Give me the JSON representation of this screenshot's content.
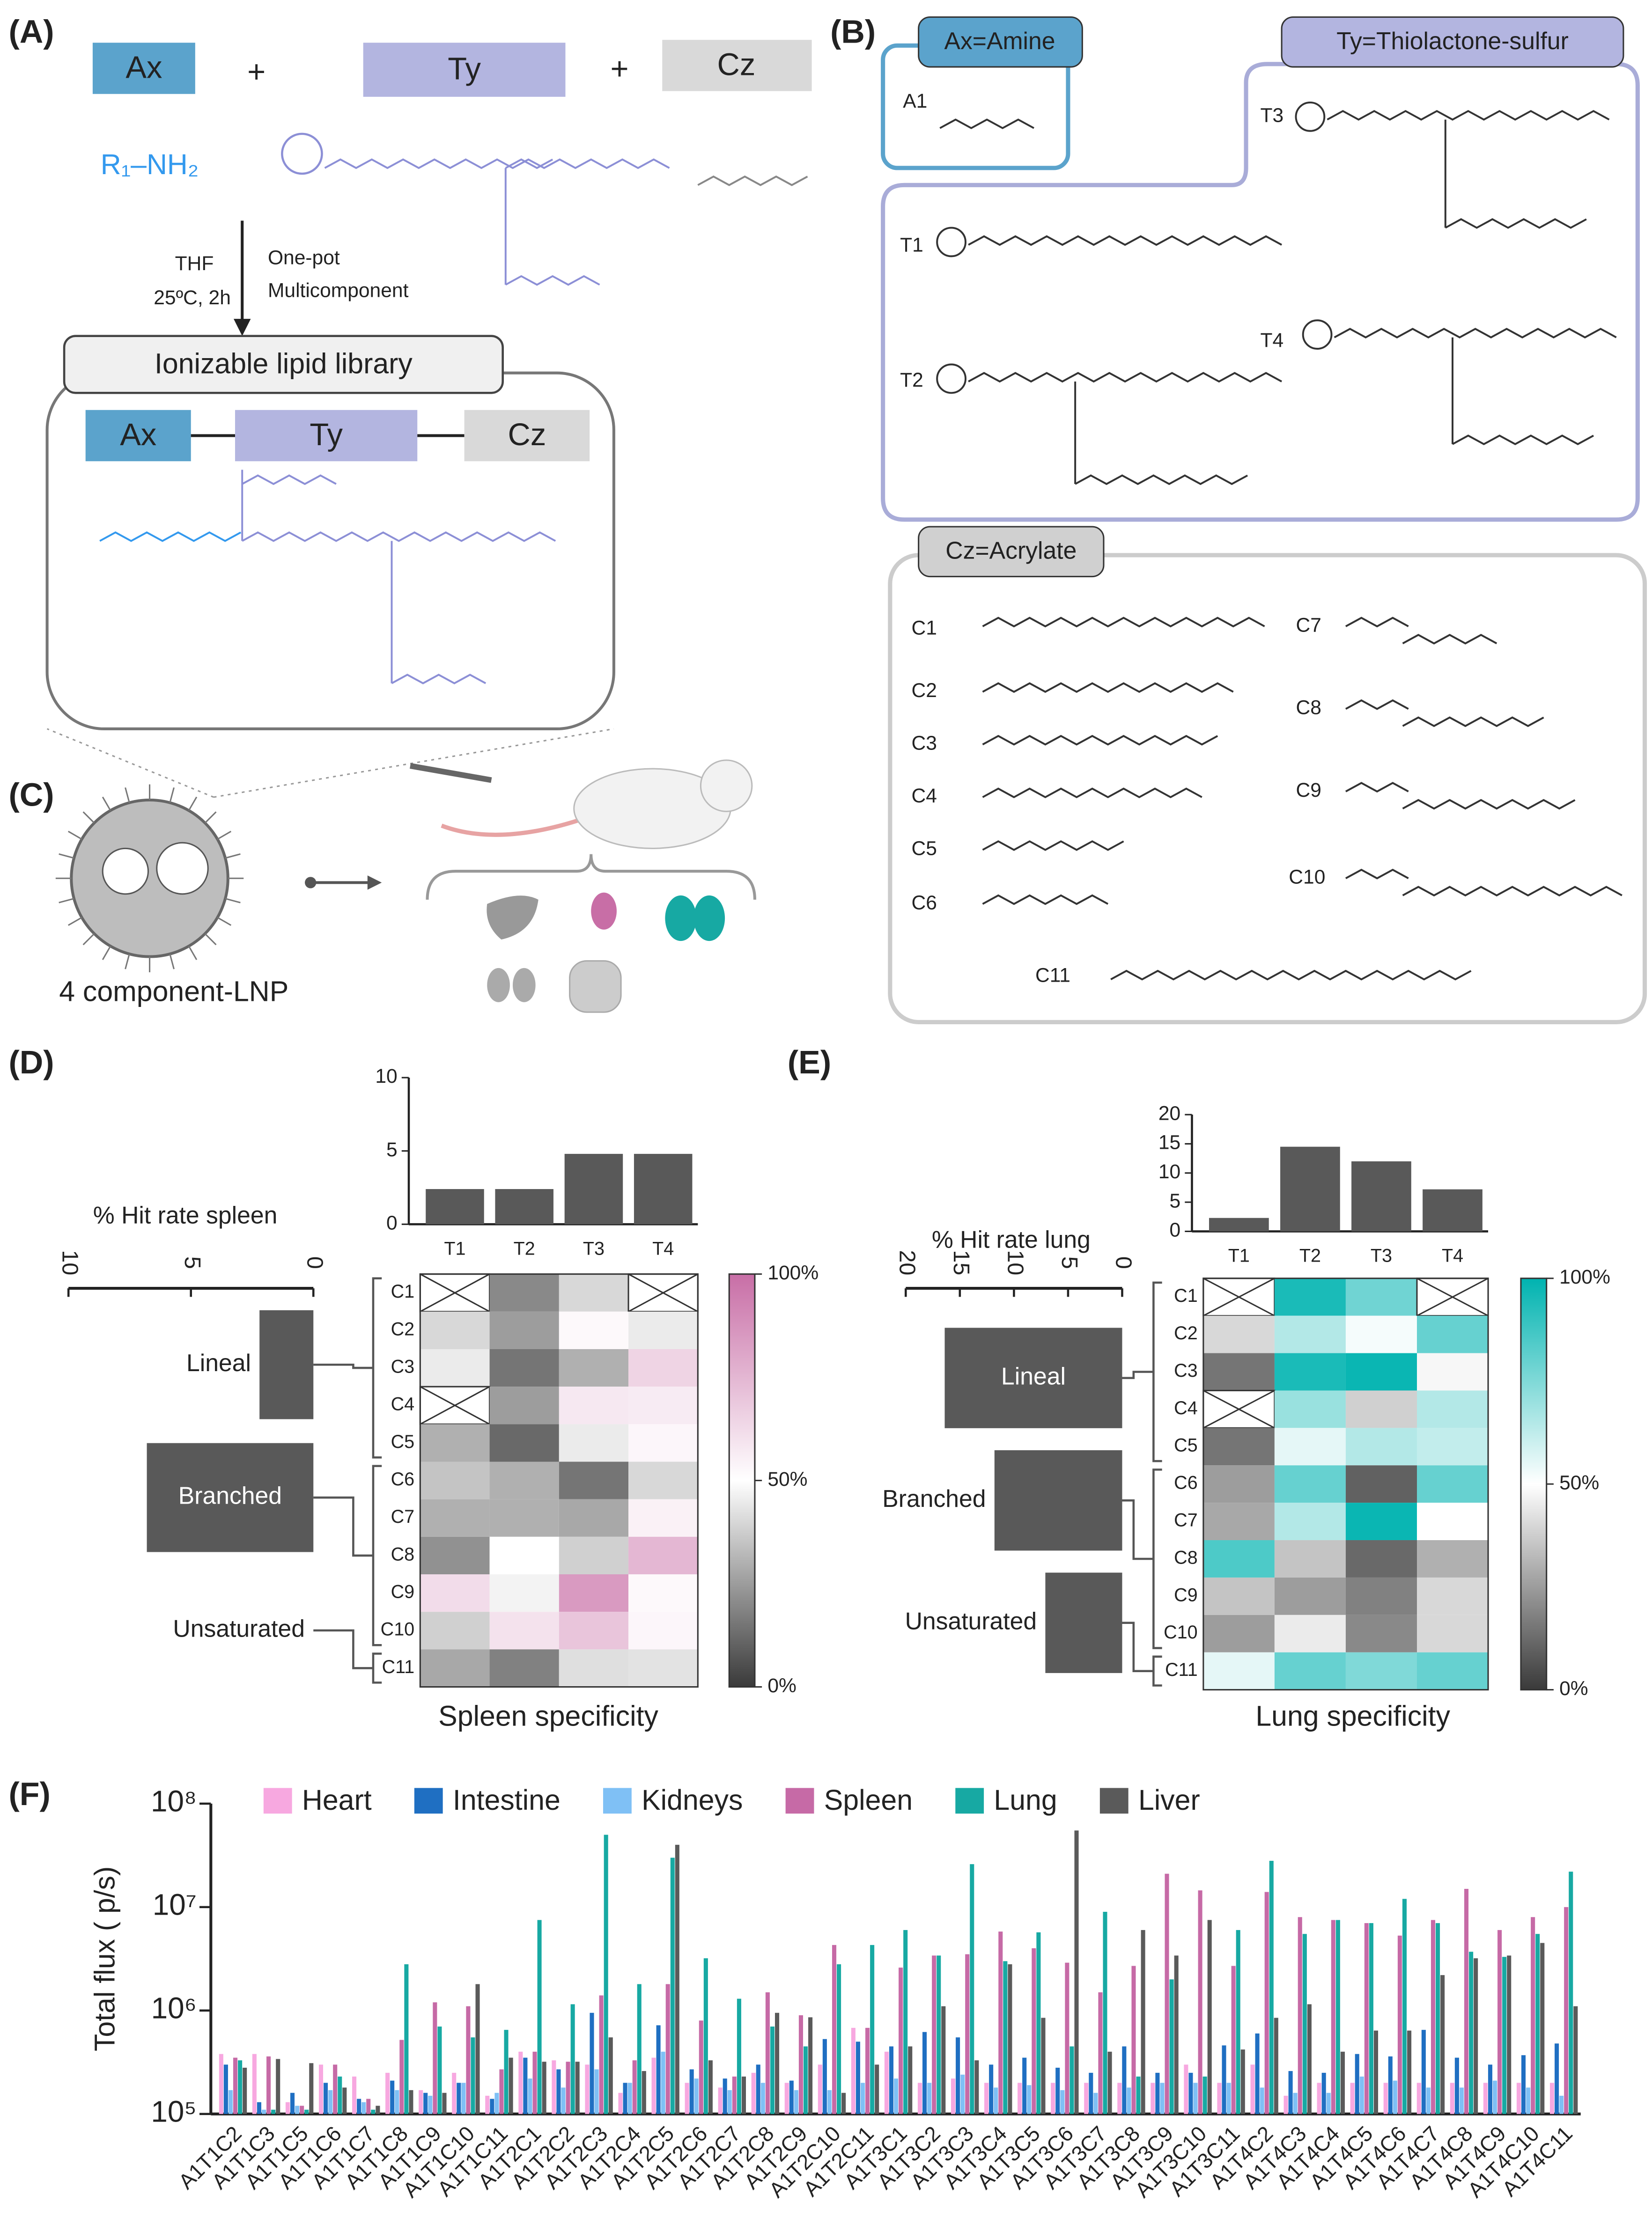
{
  "panel_a": {
    "label": "(A)",
    "ax": "Ax",
    "plus1": "+",
    "ty": "Ty",
    "plus2": "+",
    "cz": "Cz",
    "amine": "R₁–NH₂",
    "solvent": "THF",
    "conditions": "25ºC, 2h",
    "method_1": "One-pot",
    "method_2": "Multicomponent",
    "library": "Ionizable lipid library",
    "row_ax": "Ax",
    "row_ty": "Ty",
    "row_cz": "Cz"
  },
  "panel_b": {
    "label": "(B)",
    "amine_title": "Ax=Amine",
    "amines": [
      "A1"
    ],
    "thiolactone_title": "Ty=Thiolactone-sulfur",
    "thiolactones": [
      "T1",
      "T2",
      "T3",
      "T4"
    ],
    "acrylate_title": "Cz=Acrylate",
    "acrylates": [
      "C1",
      "C2",
      "C3",
      "C4",
      "C5",
      "C6",
      "C7",
      "C8",
      "C9",
      "C10",
      "C11"
    ]
  },
  "panel_c": {
    "label": "(C)",
    "caption": "4 component-LNP"
  },
  "panel_d": {
    "label": "(D)"
  },
  "panel_e": {
    "label": "(E)"
  },
  "panel_f": {
    "label": "(F)"
  },
  "chart_data": [
    {
      "type": "hbar",
      "title": "% Hit rate spleen",
      "categories": [
        "Lineal",
        "Branched",
        "Unsaturated"
      ],
      "values": [
        2.2,
        6.8,
        0
      ],
      "xlim": [
        10,
        0
      ],
      "xticks": [
        10,
        5,
        0
      ],
      "color": "#595959"
    },
    {
      "type": "bar",
      "categories": [
        "T1",
        "T2",
        "T3",
        "T4"
      ],
      "values": [
        2.4,
        2.4,
        4.8,
        4.8
      ],
      "ylim": [
        0,
        10
      ],
      "yticks": [
        0,
        5,
        10
      ],
      "color": "#595959"
    },
    {
      "type": "heatmap",
      "title": "Spleen specificity",
      "rows": [
        "C1",
        "C2",
        "C3",
        "C4",
        "C5",
        "C6",
        "C7",
        "C8",
        "C9",
        "C10",
        "C11"
      ],
      "values": [
        [
          null,
          20,
          40,
          null
        ],
        [
          40,
          25,
          52,
          45
        ],
        [
          45,
          15,
          30,
          65
        ],
        [
          null,
          25,
          58,
          57
        ],
        [
          30,
          12,
          45,
          53
        ],
        [
          35,
          30,
          15,
          40
        ],
        [
          30,
          30,
          28,
          55
        ],
        [
          22,
          50,
          38,
          75
        ],
        [
          62,
          47,
          85,
          52
        ],
        [
          38,
          60,
          70,
          53
        ],
        [
          28,
          18,
          42,
          43
        ]
      ],
      "clim": [
        0,
        100
      ],
      "cticks": [
        {
          "value": 0,
          "label": "0%"
        },
        {
          "value": 50,
          "label": "50%"
        },
        {
          "value": 100,
          "label": "100%"
        }
      ],
      "colors": [
        "#3a3a3a",
        "#ffffff",
        "#c86ea6"
      ]
    },
    {
      "type": "hbar",
      "title": "% Hit rate lung",
      "categories": [
        "Lineal",
        "Branched",
        "Unsaturated"
      ],
      "values": [
        16.4,
        11.8,
        7.1
      ],
      "xlim": [
        20,
        0
      ],
      "xticks": [
        20,
        15,
        10,
        5,
        0
      ],
      "color": "#595959"
    },
    {
      "type": "bar",
      "categories": [
        "T1",
        "T2",
        "T3",
        "T4"
      ],
      "values": [
        2.3,
        14.5,
        12,
        7.2
      ],
      "ylim": [
        0,
        20
      ],
      "yticks": [
        0,
        5,
        10,
        15,
        20
      ],
      "color": "#595959"
    },
    {
      "type": "heatmap",
      "title": "Lung specificity",
      "rows": [
        "C1",
        "C2",
        "C3",
        "C4",
        "C5",
        "C6",
        "C7",
        "C8",
        "C9",
        "C10",
        "C11"
      ],
      "values": [
        [
          null,
          95,
          78,
          null
        ],
        [
          40,
          65,
          52,
          80
        ],
        [
          15,
          95,
          98,
          48
        ],
        [
          null,
          70,
          38,
          65
        ],
        [
          15,
          55,
          65,
          62
        ],
        [
          25,
          80,
          10,
          80
        ],
        [
          28,
          65,
          98,
          50
        ],
        [
          85,
          35,
          12,
          30
        ],
        [
          35,
          25,
          18,
          40
        ],
        [
          25,
          45,
          20,
          40
        ],
        [
          55,
          80,
          75,
          80
        ]
      ],
      "clim": [
        0,
        100
      ],
      "cticks": [
        {
          "value": 0,
          "label": "0%"
        },
        {
          "value": 50,
          "label": "50%"
        },
        {
          "value": 100,
          "label": "100%"
        }
      ],
      "colors": [
        "#3a3a3a",
        "#ffffff",
        "#00b3b0"
      ]
    },
    {
      "type": "grouped-bar",
      "ylabel": "Total flux ( p/s)",
      "log": true,
      "legend": "top",
      "ylim": [
        100000,
        100000000
      ],
      "yticks": [
        {
          "value": 100000,
          "label": "10⁵"
        },
        {
          "value": 1000000,
          "label": "10⁶"
        },
        {
          "value": 10000000,
          "label": "10⁷"
        },
        {
          "value": 100000000,
          "label": "10⁸"
        }
      ],
      "categories": [
        "A1T1C2",
        "A1T1C3",
        "A1T1C5",
        "A1T1C6",
        "A1T1C7",
        "A1T1C8",
        "A1T1C9",
        "A1T1C10",
        "A1T1C11",
        "A1T2C1",
        "A1T2C2",
        "A1T2C3",
        "A1T2C4",
        "A1T2C5",
        "A1T2C6",
        "A1T2C7",
        "A1T2C8",
        "A1T2C9",
        "A1T2C10",
        "A1T2C11",
        "A1T3C1",
        "A1T3C2",
        "A1T3C3",
        "A1T3C4",
        "A1T3C5",
        "A1T3C6",
        "A1T3C7",
        "A1T3C8",
        "A1T3C9",
        "A1T3C10",
        "A1T3C11",
        "A1T4C2",
        "A1T4C3",
        "A1T4C4",
        "A1T4C5",
        "A1T4C6",
        "A1T4C7",
        "A1T4C8",
        "A1T4C9",
        "A1T4C10",
        "A1T4C11"
      ],
      "series": [
        {
          "name": "Heart",
          "color": "#f7a8e0",
          "values": [
            380000,
            380000,
            130000,
            300000,
            230000,
            250000,
            170000,
            250000,
            150000,
            400000,
            330000,
            300000,
            160000,
            350000,
            200000,
            180000,
            250000,
            200000,
            300000,
            680000,
            400000,
            200000,
            220000,
            200000,
            200000,
            200000,
            200000,
            200000,
            200000,
            300000,
            200000,
            300000,
            150000,
            200000,
            200000,
            200000,
            200000,
            200000,
            200000,
            200000,
            200000
          ]
        },
        {
          "name": "Intestine",
          "color": "#1f6fc2",
          "values": [
            300000,
            130000,
            160000,
            200000,
            140000,
            210000,
            160000,
            200000,
            140000,
            350000,
            270000,
            950000,
            200000,
            720000,
            270000,
            220000,
            300000,
            210000,
            530000,
            500000,
            450000,
            620000,
            550000,
            300000,
            350000,
            280000,
            250000,
            450000,
            250000,
            250000,
            460000,
            600000,
            260000,
            250000,
            380000,
            360000,
            650000,
            350000,
            300000,
            370000,
            480000
          ]
        },
        {
          "name": "Kidneys",
          "color": "#7fc0f5",
          "values": [
            170000,
            110000,
            120000,
            170000,
            130000,
            170000,
            150000,
            200000,
            160000,
            220000,
            180000,
            270000,
            200000,
            400000,
            220000,
            170000,
            200000,
            170000,
            170000,
            200000,
            220000,
            200000,
            240000,
            180000,
            190000,
            170000,
            160000,
            180000,
            200000,
            200000,
            200000,
            180000,
            160000,
            160000,
            230000,
            210000,
            180000,
            180000,
            210000,
            180000,
            150000
          ]
        },
        {
          "name": "Spleen",
          "color": "#c66aa6",
          "values": [
            350000,
            360000,
            120000,
            300000,
            140000,
            520000,
            1200000,
            1100000,
            270000,
            400000,
            320000,
            1400000,
            330000,
            1800000,
            800000,
            230000,
            1500000,
            900000,
            4300000,
            680000,
            2600000,
            3400000,
            3500000,
            5800000,
            4000000,
            2900000,
            1500000,
            2700000,
            21000000,
            14500000,
            2700000,
            14000000,
            8000000,
            7500000,
            7000000,
            5300000,
            7500000,
            15000000,
            6000000,
            8000000,
            10000000
          ]
        },
        {
          "name": "Lung",
          "color": "#17a9a3",
          "values": [
            330000,
            110000,
            110000,
            230000,
            110000,
            2800000,
            700000,
            550000,
            650000,
            7500000,
            1150000,
            50000000,
            1800000,
            30000000,
            3200000,
            1300000,
            700000,
            450000,
            2800000,
            4300000,
            6000000,
            3400000,
            26000000,
            3000000,
            5700000,
            450000,
            9000000,
            230000,
            2000000,
            230000,
            6000000,
            28000000,
            5500000,
            7500000,
            7000000,
            12000000,
            7000000,
            3700000,
            3300000,
            5500000,
            22000000
          ]
        },
        {
          "name": "Liver",
          "color": "#5a5a5a",
          "values": [
            280000,
            340000,
            310000,
            180000,
            120000,
            170000,
            160000,
            1800000,
            350000,
            320000,
            320000,
            550000,
            260000,
            40000000,
            330000,
            230000,
            950000,
            860000,
            160000,
            300000,
            450000,
            1100000,
            330000,
            2800000,
            850000,
            55000000,
            400000,
            6000000,
            3400000,
            7500000,
            420000,
            850000,
            1150000,
            400000,
            640000,
            640000,
            2200000,
            3200000,
            3400000,
            4500000,
            1100000
          ]
        }
      ]
    }
  ]
}
